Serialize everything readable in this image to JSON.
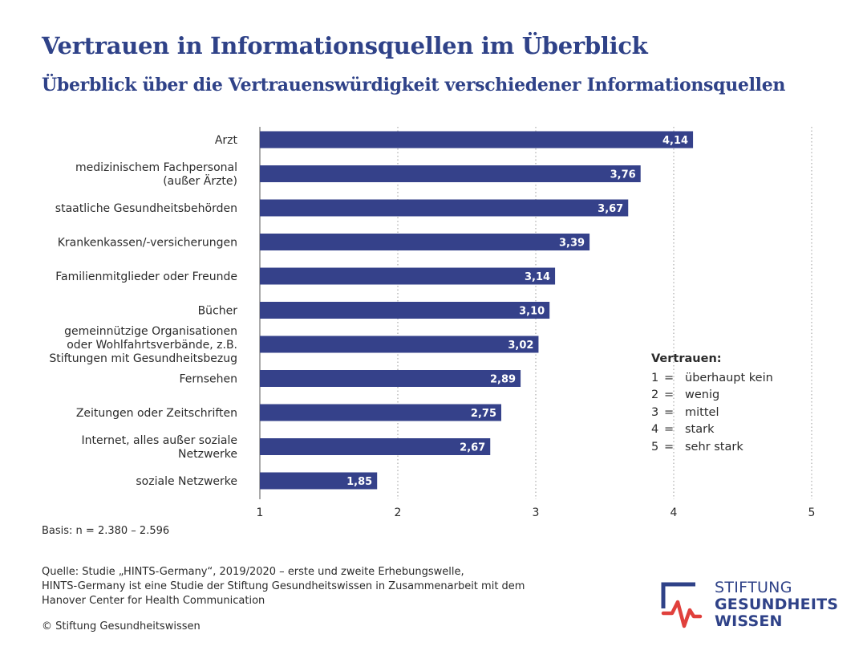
{
  "header": {
    "title": "Vertrauen in Informationsquellen im Überblick",
    "subtitle": "Überblick über die Vertrauenswürdigkeit verschiedener Informationsquellen"
  },
  "chart_data": {
    "type": "bar",
    "orientation": "horizontal",
    "categories": [
      [
        "Arzt"
      ],
      [
        "medizinischem Fachpersonal",
        "(außer Ärzte)"
      ],
      [
        "staatliche Gesundheitsbehörden"
      ],
      [
        "Krankenkassen/-versicherungen"
      ],
      [
        "Familienmitglieder oder Freunde"
      ],
      [
        "Bücher"
      ],
      [
        "gemeinnützige Organisationen",
        "oder Wohlfahrtsverbände, z.B.",
        "Stiftungen mit Gesundheitsbezug"
      ],
      [
        "Fernsehen"
      ],
      [
        "Zeitungen oder Zeitschriften"
      ],
      [
        "Internet, alles außer soziale",
        "Netzwerke"
      ],
      [
        "soziale Netzwerke"
      ]
    ],
    "values": [
      4.14,
      3.76,
      3.67,
      3.39,
      3.14,
      3.1,
      3.02,
      2.89,
      2.75,
      2.67,
      1.85
    ],
    "value_labels": [
      "4,14",
      "3,76",
      "3,67",
      "3,39",
      "3,14",
      "3,10",
      "3,02",
      "2,89",
      "2,75",
      "2,67",
      "1,85"
    ],
    "xlim": [
      1,
      5
    ],
    "xticks": [
      "1",
      "2",
      "3",
      "4",
      "5"
    ],
    "grid": "vertical dotted",
    "bar_color": "#35418a"
  },
  "legend": {
    "title": "Vertrauen:",
    "items": [
      {
        "num": "1",
        "eq": "=",
        "text": "überhaupt kein"
      },
      {
        "num": "2",
        "eq": "=",
        "text": "wenig"
      },
      {
        "num": "3",
        "eq": "=",
        "text": "mittel"
      },
      {
        "num": "4",
        "eq": "=",
        "text": "stark"
      },
      {
        "num": "5",
        "eq": "=",
        "text": "sehr stark"
      }
    ]
  },
  "footer": {
    "basis": "Basis: n = 2.380 – 2.596",
    "source_lines": [
      "Quelle: Studie „HINTS-Germany“, 2019/2020 – erste und zweite Erhebungswelle,",
      "HINTS-Germany ist eine Studie der Stiftung Gesundheitswissen in Zusammenarbeit mit dem",
      "Hanover Center for Health Communication"
    ],
    "copyright": "© Stiftung Gesundheitswissen"
  },
  "logo": {
    "line1": "STIFTUNG",
    "line2": "GESUNDHEITS",
    "line3": "WISSEN",
    "colors": {
      "blue": "#2f4288",
      "red": "#e0403c"
    }
  }
}
